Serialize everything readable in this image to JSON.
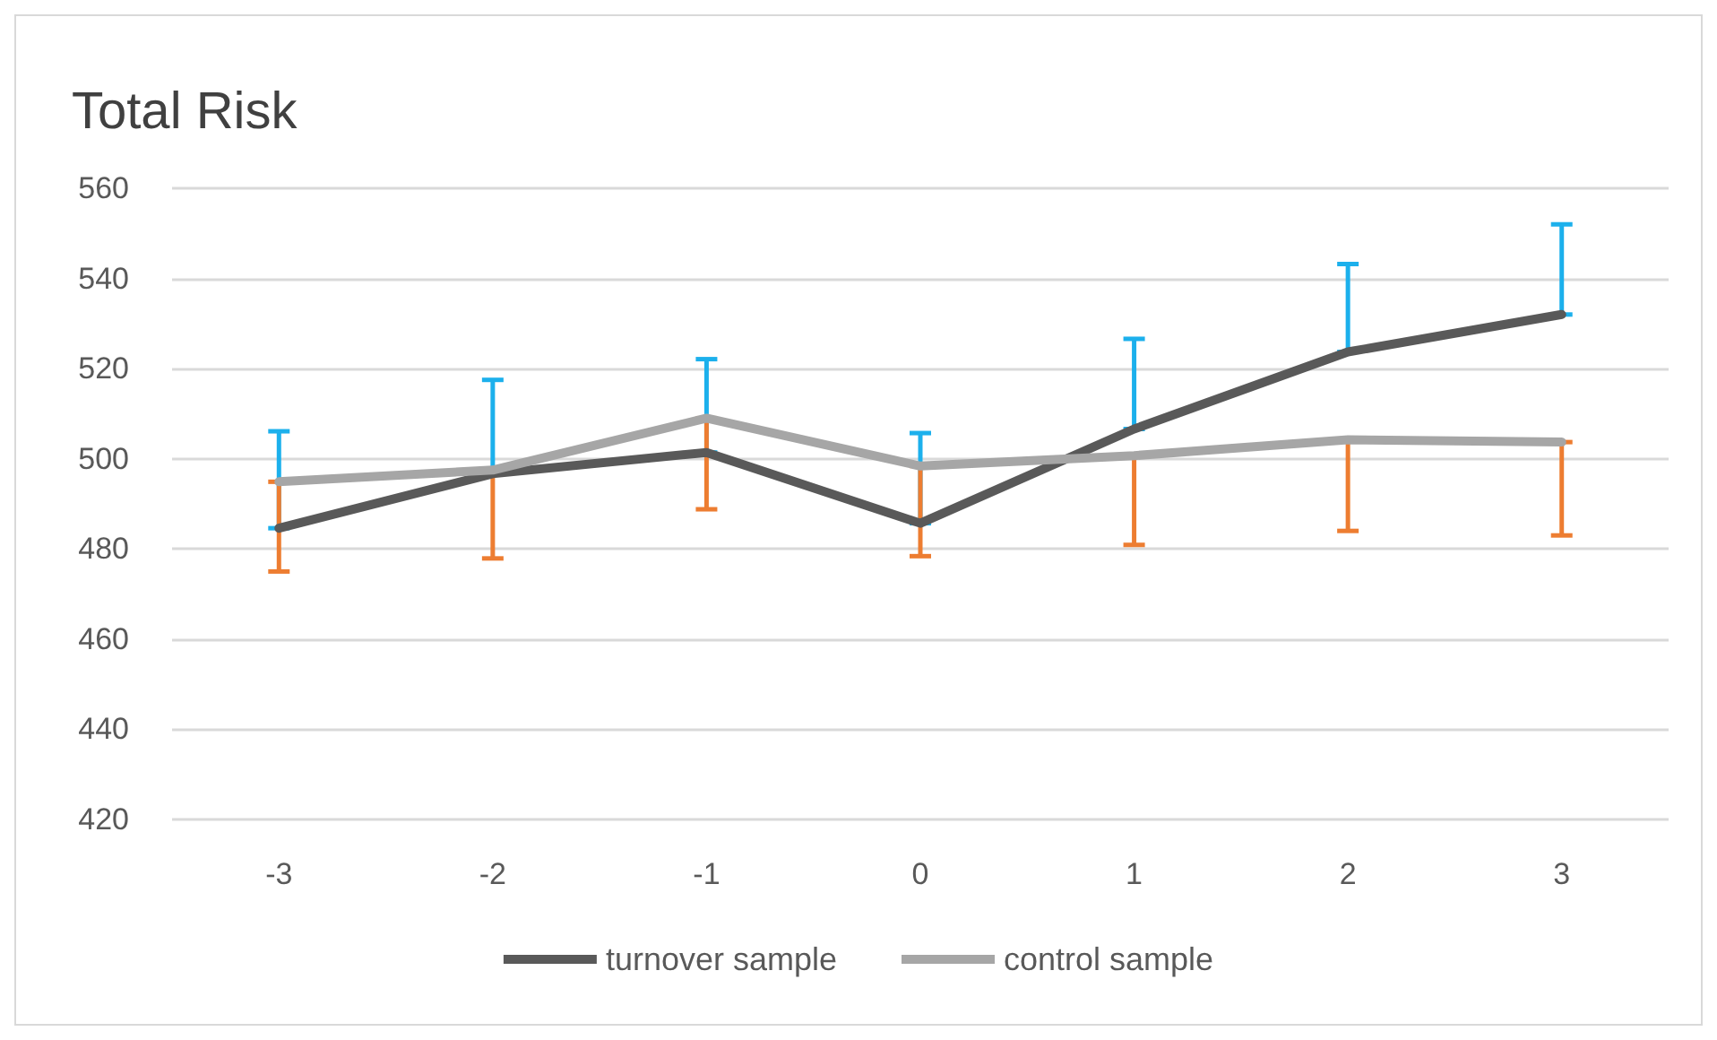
{
  "chart_data": {
    "type": "line",
    "title": "Total Risk",
    "categories": [
      "-3",
      "-2",
      "-1",
      "0",
      "1",
      "2",
      "3"
    ],
    "series": [
      {
        "name": "turnover sample",
        "color": "#595959",
        "values": [
          484.6,
          496.7,
          501.4,
          485.7,
          506.6,
          523.7,
          532.0
        ],
        "errors": [
          [
            484.6,
            506.1
          ],
          [
            496.7,
            517.5
          ],
          [
            501.4,
            522.1
          ],
          [
            485.7,
            505.7
          ],
          [
            506.6,
            526.6
          ],
          [
            523.7,
            543.2
          ],
          [
            532.0,
            552.0
          ]
        ]
      },
      {
        "name": "control sample",
        "color": "#a6a6a6",
        "values": [
          494.9,
          497.5,
          509.0,
          498.4,
          500.7,
          504.2,
          503.7
        ],
        "errors": [
          [
            475.0,
            494.9
          ],
          [
            477.9,
            497.5
          ],
          [
            488.8,
            509.0
          ],
          [
            478.4,
            498.4
          ],
          [
            480.9,
            500.7
          ],
          [
            484.0,
            504.2
          ],
          [
            483.0,
            503.7
          ]
        ]
      }
    ],
    "ylim": [
      420,
      560
    ],
    "yticks": [
      420,
      440,
      460,
      480,
      500,
      520,
      540,
      560
    ],
    "grid": "y",
    "legend": "bottom",
    "marker": "none",
    "line_style": "solid"
  }
}
